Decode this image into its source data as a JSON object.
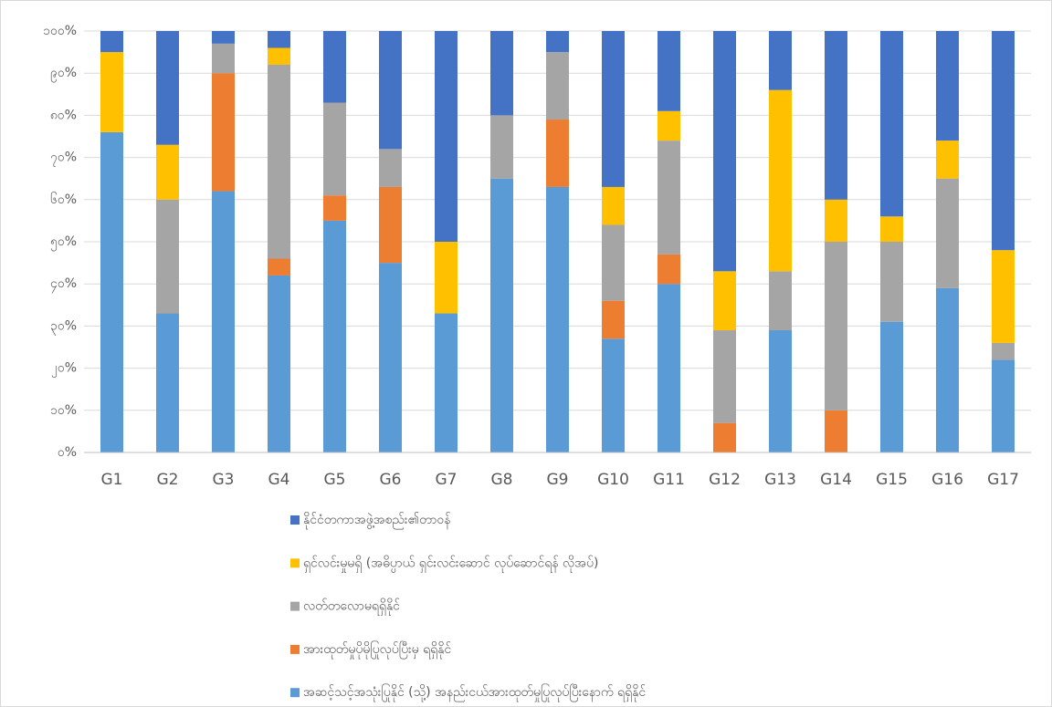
{
  "chart_data": {
    "type": "stacked_bar",
    "categories": [
      "G1",
      "G2",
      "G3",
      "G4",
      "G5",
      "G6",
      "G7",
      "G8",
      "G9",
      "G10",
      "G11",
      "G12",
      "G13",
      "G14",
      "G15",
      "G16",
      "G17"
    ],
    "series": [
      {
        "name": "အဆင့်သင့်အသုံးပြုနိုင် (သို့) အနည်းငယ်အားထုတ်မှုပြုလုပ်ပြီးနောက် ရရှိနိုင်",
        "color": "#5b9bd5",
        "values": [
          76,
          33,
          62,
          42,
          55,
          45,
          33,
          65,
          63,
          27,
          40,
          0,
          29,
          0,
          31,
          39,
          22
        ]
      },
      {
        "name": "အားထုတ်မှုပိုမိုပြုလုပ်ပြီးမှ ရရှိနိုင်",
        "color": "#ed7d31",
        "values": [
          0,
          0,
          28,
          4,
          6,
          18,
          0,
          0,
          16,
          9,
          7,
          7,
          0,
          10,
          0,
          0,
          0
        ]
      },
      {
        "name": "လတ်တလောမရရှိနိုင်",
        "color": "#a5a5a5",
        "values": [
          0,
          27,
          7,
          46,
          22,
          9,
          0,
          15,
          16,
          18,
          27,
          22,
          14,
          40,
          19,
          26,
          4
        ]
      },
      {
        "name": "ရှင်လင်းမှုမရှိ (အဓိပ္ပာယ် ရှင်းလင်းဆောင် လုပ်ဆောင်ရန် လိုအပ်)",
        "color": "#ffc000",
        "values": [
          19,
          13,
          0,
          4,
          0,
          0,
          17,
          0,
          0,
          9,
          7,
          14,
          43,
          10,
          6,
          9,
          22
        ]
      },
      {
        "name": "နိုင်ငံတကာအဖွဲ့အစည်း၏တာဝန်",
        "color": "#4472c4",
        "values": [
          5,
          27,
          3,
          4,
          17,
          28,
          50,
          20,
          5,
          37,
          19,
          57,
          14,
          40,
          44,
          26,
          52
        ]
      }
    ],
    "ylim": [
      0,
      100
    ],
    "yticks": [
      {
        "value": 0,
        "label": "၀%"
      },
      {
        "value": 10,
        "label": "၁၀%"
      },
      {
        "value": 20,
        "label": "၂၀%"
      },
      {
        "value": 30,
        "label": "၃၀%"
      },
      {
        "value": 40,
        "label": "၄၀%"
      },
      {
        "value": 50,
        "label": "၅၀%"
      },
      {
        "value": 60,
        "label": "၆၀%"
      },
      {
        "value": 70,
        "label": "၇၀%"
      },
      {
        "value": 80,
        "label": "၈၀%"
      },
      {
        "value": 90,
        "label": "၉၀%"
      },
      {
        "value": 100,
        "label": "၁၀၀%"
      }
    ],
    "grid": true
  }
}
